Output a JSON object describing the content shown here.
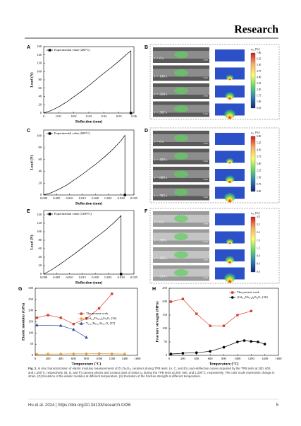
{
  "header": {
    "journal": "Research"
  },
  "chart_data": [
    {
      "type": "line",
      "label": "A",
      "xlabel": "Deflection (mm)",
      "ylabel": "Load (N)",
      "xlim": [
        0,
        0.06
      ],
      "xticks": [
        0,
        0.01,
        0.02,
        0.03,
        0.04,
        0.05,
        0.06
      ],
      "ylim": [
        0,
        160
      ],
      "yticks": [
        0,
        20,
        40,
        60,
        80,
        100,
        120,
        140,
        160
      ],
      "legend": "top-left",
      "series": [
        {
          "name": "Experimental value (200°C)",
          "color": "#000000",
          "marker": "square",
          "x": [
            0,
            0.005,
            0.01,
            0.015,
            0.02,
            0.025,
            0.03,
            0.035,
            0.04,
            0.045,
            0.05,
            0.055,
            0.058,
            0.058
          ],
          "values": [
            0,
            6,
            15,
            26,
            39,
            52,
            66,
            81,
            96,
            110,
            125,
            141,
            150,
            0
          ]
        }
      ]
    },
    {
      "type": "line",
      "label": "C",
      "xlabel": "Deflection (mm)",
      "ylabel": "Load (N)",
      "xlim": [
        0,
        0.035
      ],
      "xticks": [
        {
          "value": 0,
          "label": "0.000"
        },
        {
          "value": 0.005,
          "label": "0.005"
        },
        {
          "value": 0.01,
          "label": "0.010"
        },
        {
          "value": 0.015,
          "label": "0.015"
        },
        {
          "value": 0.02,
          "label": "0.020"
        },
        {
          "value": 0.025,
          "label": "0.025"
        },
        {
          "value": 0.03,
          "label": "0.030"
        },
        {
          "value": 0.035,
          "label": "0.035"
        }
      ],
      "ylim": [
        0,
        110
      ],
      "yticks": [
        0,
        20,
        40,
        60,
        80,
        100
      ],
      "legend": "top-left",
      "series": [
        {
          "name": "Experimental value (600°C)",
          "color": "#000000",
          "marker": "square",
          "x": [
            0,
            0.003,
            0.006,
            0.009,
            0.012,
            0.015,
            0.018,
            0.021,
            0.024,
            0.027,
            0.03,
            0.0315,
            0.0315
          ],
          "values": [
            0,
            4,
            10,
            17,
            26,
            35,
            45,
            55,
            66,
            78,
            92,
            101,
            0
          ]
        }
      ]
    },
    {
      "type": "line",
      "label": "E",
      "xlabel": "Deflection (mm)",
      "ylabel": "Load (N)",
      "xlim": [
        0,
        0.035
      ],
      "xticks": [
        {
          "value": 0,
          "label": "0.000"
        },
        {
          "value": 0.005,
          "label": "0.005"
        },
        {
          "value": 0.01,
          "label": "0.010"
        },
        {
          "value": 0.015,
          "label": "0.015"
        },
        {
          "value": 0.02,
          "label": "0.020"
        },
        {
          "value": 0.025,
          "label": "0.025"
        },
        {
          "value": 0.03,
          "label": "0.030"
        },
        {
          "value": 0.035,
          "label": "0.035"
        }
      ],
      "ylim": [
        0,
        150
      ],
      "yticks": [
        0,
        20,
        40,
        60,
        80,
        100,
        120,
        140
      ],
      "legend": "top-left",
      "series": [
        {
          "name": "Experimental value (1200°C)",
          "color": "#000000",
          "marker": "square",
          "x": [
            0,
            0.003,
            0.006,
            0.009,
            0.012,
            0.015,
            0.018,
            0.021,
            0.024,
            0.027,
            0.03,
            0.03
          ],
          "values": [
            0,
            10,
            22,
            35,
            48,
            62,
            76,
            90,
            104,
            120,
            138,
            0
          ]
        }
      ]
    },
    {
      "type": "line",
      "label": "G",
      "xlabel": "Temperature (°C)",
      "ylabel": "Elastic modulus (GPa)",
      "xlim": [
        0,
        1600
      ],
      "xticks": [
        0,
        200,
        400,
        600,
        800,
        1000,
        1200,
        1400,
        1600
      ],
      "ylim": [
        0,
        300
      ],
      "yticks": [
        0,
        50,
        100,
        150,
        200,
        250,
        300
      ],
      "legend": "center",
      "series": [
        {
          "name": "The present work",
          "color": "#d9412b",
          "marker": "square",
          "x": [
            25,
            200,
            400,
            600,
            800,
            1000,
            1200
          ],
          "values": [
            168,
            180,
            168,
            140,
            165,
            210,
            275
          ]
        },
        {
          "name": "(Gd₀.₄Yb₀.₆)₂Zr₂O₇ [36]",
          "color": "#e8a33c",
          "marker": "circle",
          "x": [
            25,
            200,
            400,
            600,
            800,
            1000,
            1200,
            1400
          ],
          "values": [
            5,
            6,
            6,
            7,
            7,
            8,
            7,
            6
          ]
        },
        {
          "name": "Y₀.₁₅Ta₀.₁₅Zr₀.₇O₂ [37]",
          "color": "#2f4f9e",
          "marker": "triangle",
          "x": [
            25,
            400,
            600,
            800
          ],
          "values": [
            135,
            133,
            115,
            80
          ]
        }
      ]
    },
    {
      "type": "line",
      "label": "H",
      "xlabel": "Temperature (°C)",
      "ylabel": "Fracture strength (MPa)",
      "xlim": [
        0,
        1600
      ],
      "xticks": [
        0,
        200,
        400,
        600,
        800,
        1000,
        1200,
        1400,
        1600
      ],
      "ylim": [
        0,
        250
      ],
      "yticks": [
        0,
        50,
        100,
        150,
        200,
        250
      ],
      "legend": "top-right",
      "series": [
        {
          "name": "The present work",
          "color": "#d9412b",
          "marker": "square",
          "x": [
            25,
            200,
            400,
            600,
            800,
            1000,
            1200
          ],
          "values": [
            200,
            210,
            155,
            110,
            110,
            150,
            165
          ]
        },
        {
          "name": "(Gd₀.₄Yb₀.₆)₂Zr₂O₇ [36]",
          "color": "#000000",
          "marker": "circle",
          "x": [
            25,
            200,
            400,
            600,
            800,
            1000,
            1100,
            1200,
            1300,
            1400
          ],
          "values": [
            5,
            8,
            10,
            15,
            30,
            50,
            55,
            52,
            50,
            42
          ]
        }
      ]
    }
  ],
  "panels": [
    {
      "label": "B",
      "frames": [
        "t = 0 s",
        "t = 100 s",
        "t = 358 s",
        "t = 362 s"
      ],
      "scale": "5 mm",
      "colorbar_title": "εₓₓ [%]",
      "colorbar_ticks": [
        "7.00",
        "6.25",
        "5.50",
        "4.75",
        "4.00",
        "3.25",
        "2.50",
        "1.75",
        "1.00",
        "0.25"
      ]
    },
    {
      "label": "D",
      "frames": [
        "t = 0 s",
        "t = 400 s",
        "t = 600 s",
        "t = 783 s"
      ],
      "scale": "5 mm",
      "colorbar_title": "εₓₓ [%]",
      "colorbar_ticks": [
        "6.00",
        "5.25",
        "4.50",
        "3.75",
        "3.00",
        "2.25",
        "1.50",
        "0.75",
        "0.00"
      ]
    },
    {
      "label": "F",
      "frames": [
        "t = 0 s",
        "t = 300 s",
        "t = 450 s",
        "t = 550 s"
      ],
      "scale": "5 mm",
      "colorbar_title": "εₓₓ [%]",
      "colorbar_ticks": [
        "4.0",
        "3.2",
        "2.4",
        "1.6",
        "1.2",
        "0.8",
        "0.4",
        "0.0"
      ]
    }
  ],
  "caption": {
    "lead": "Fig. 2.",
    "text": "In situ characterization of elastic modulus measurements of Zr₄Ta₂O₁₃ ceramics during TPB tests. (A, C, and E) Load–deflection curves acquired by the TPB tests at 200, 600, and 1,200°C, respectively. (B, D, and F) Camera photos and contour plots of strain εₓₓ during the TPB tests at 200, 600, and 1,200°C, respectively. The color scale represents change in strain. (G) Evolution of the elastic modulus at different temperature. (H) Evolution of the fracture strength at different temperature."
  },
  "footer": {
    "citation": "Hu et al. 2024 | https://doi.org/10.34133/research.0436",
    "page": "5"
  }
}
